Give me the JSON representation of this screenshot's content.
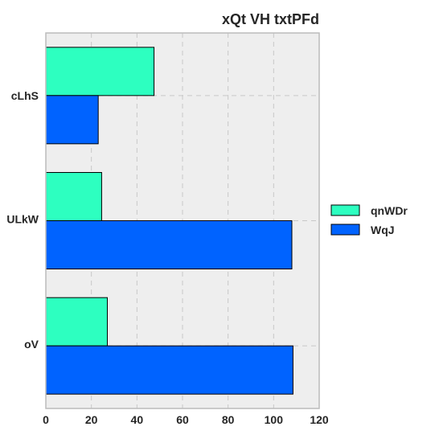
{
  "chart_data": {
    "type": "bar",
    "orientation": "horizontal",
    "title": "xQt VH  txtPFd",
    "xlabel": "",
    "ylabel": "",
    "xlim": [
      0,
      120
    ],
    "xticks": [
      0,
      20,
      40,
      60,
      80,
      100,
      120
    ],
    "grid": true,
    "legend_position": "right",
    "categories": [
      {
        "label": "cLhS",
        "size": "large"
      },
      {
        "label": "ULkW",
        "size": "small"
      },
      {
        "label": "oV",
        "size": "small"
      }
    ],
    "series": [
      {
        "name": "qnWDr",
        "color": "#2dffc0",
        "values": [
          47.5,
          24.5,
          27
        ]
      },
      {
        "name": "WqJ",
        "color": "#0063ff",
        "values": [
          23,
          108,
          108.5
        ]
      }
    ]
  }
}
